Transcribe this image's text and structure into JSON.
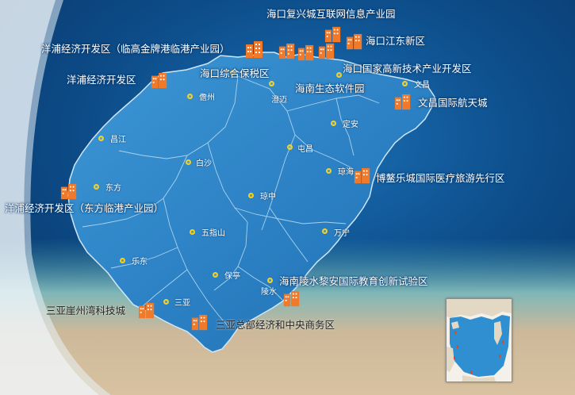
{
  "colors": {
    "sea": "#0d4d8a",
    "island": "#2e86c8",
    "accent": "#f07a2a",
    "city_dot": "#f5d21c",
    "sand": "#d8c2a0"
  },
  "zones": [
    {
      "id": "fuxing",
      "label": "海口复兴城互联网信息产业园"
    },
    {
      "id": "yangpu-jinpai",
      "label": "洋浦经济开发区（临高金牌港临港产业园）"
    },
    {
      "id": "jiangdong",
      "label": "海口江东新区"
    },
    {
      "id": "yangpu",
      "label": "洋浦经济开发区"
    },
    {
      "id": "bonded",
      "label": "海口综合保税区"
    },
    {
      "id": "hi-tech",
      "label": "海口国家高新技术产业开发区"
    },
    {
      "id": "software",
      "label": "海南生态软件园"
    },
    {
      "id": "wenchang-space",
      "label": "文昌国际航天城"
    },
    {
      "id": "boao",
      "label": "博鳌乐城国际医疗旅游先行区"
    },
    {
      "id": "dongfang",
      "label": "洋浦经济开发区（东方临港产业园）"
    },
    {
      "id": "lingshui",
      "label": "海南陵水黎安国际教育创新试验区"
    },
    {
      "id": "yazhou",
      "label": "三亚崖州湾科技城"
    },
    {
      "id": "sanya-cbd",
      "label": "三亚总部经济和中央商务区"
    }
  ],
  "cities": [
    {
      "id": "danzhou",
      "label": "儋州"
    },
    {
      "id": "chengmai",
      "label": "澄迈"
    },
    {
      "id": "wenchang",
      "label": "文昌"
    },
    {
      "id": "dingan",
      "label": "定安"
    },
    {
      "id": "tunchang",
      "label": "屯昌"
    },
    {
      "id": "changjiang",
      "label": "昌江"
    },
    {
      "id": "baisha",
      "label": "白沙"
    },
    {
      "id": "qionghai",
      "label": "琼海"
    },
    {
      "id": "dongfang-city",
      "label": "东方"
    },
    {
      "id": "qiongzhong",
      "label": "琼中"
    },
    {
      "id": "wuzhishan",
      "label": "五指山"
    },
    {
      "id": "wanning",
      "label": "万宁"
    },
    {
      "id": "ledong",
      "label": "乐东"
    },
    {
      "id": "baoting",
      "label": "保亭"
    },
    {
      "id": "lingshui-city",
      "label": "陵水"
    },
    {
      "id": "sanya",
      "label": "三亚"
    }
  ]
}
